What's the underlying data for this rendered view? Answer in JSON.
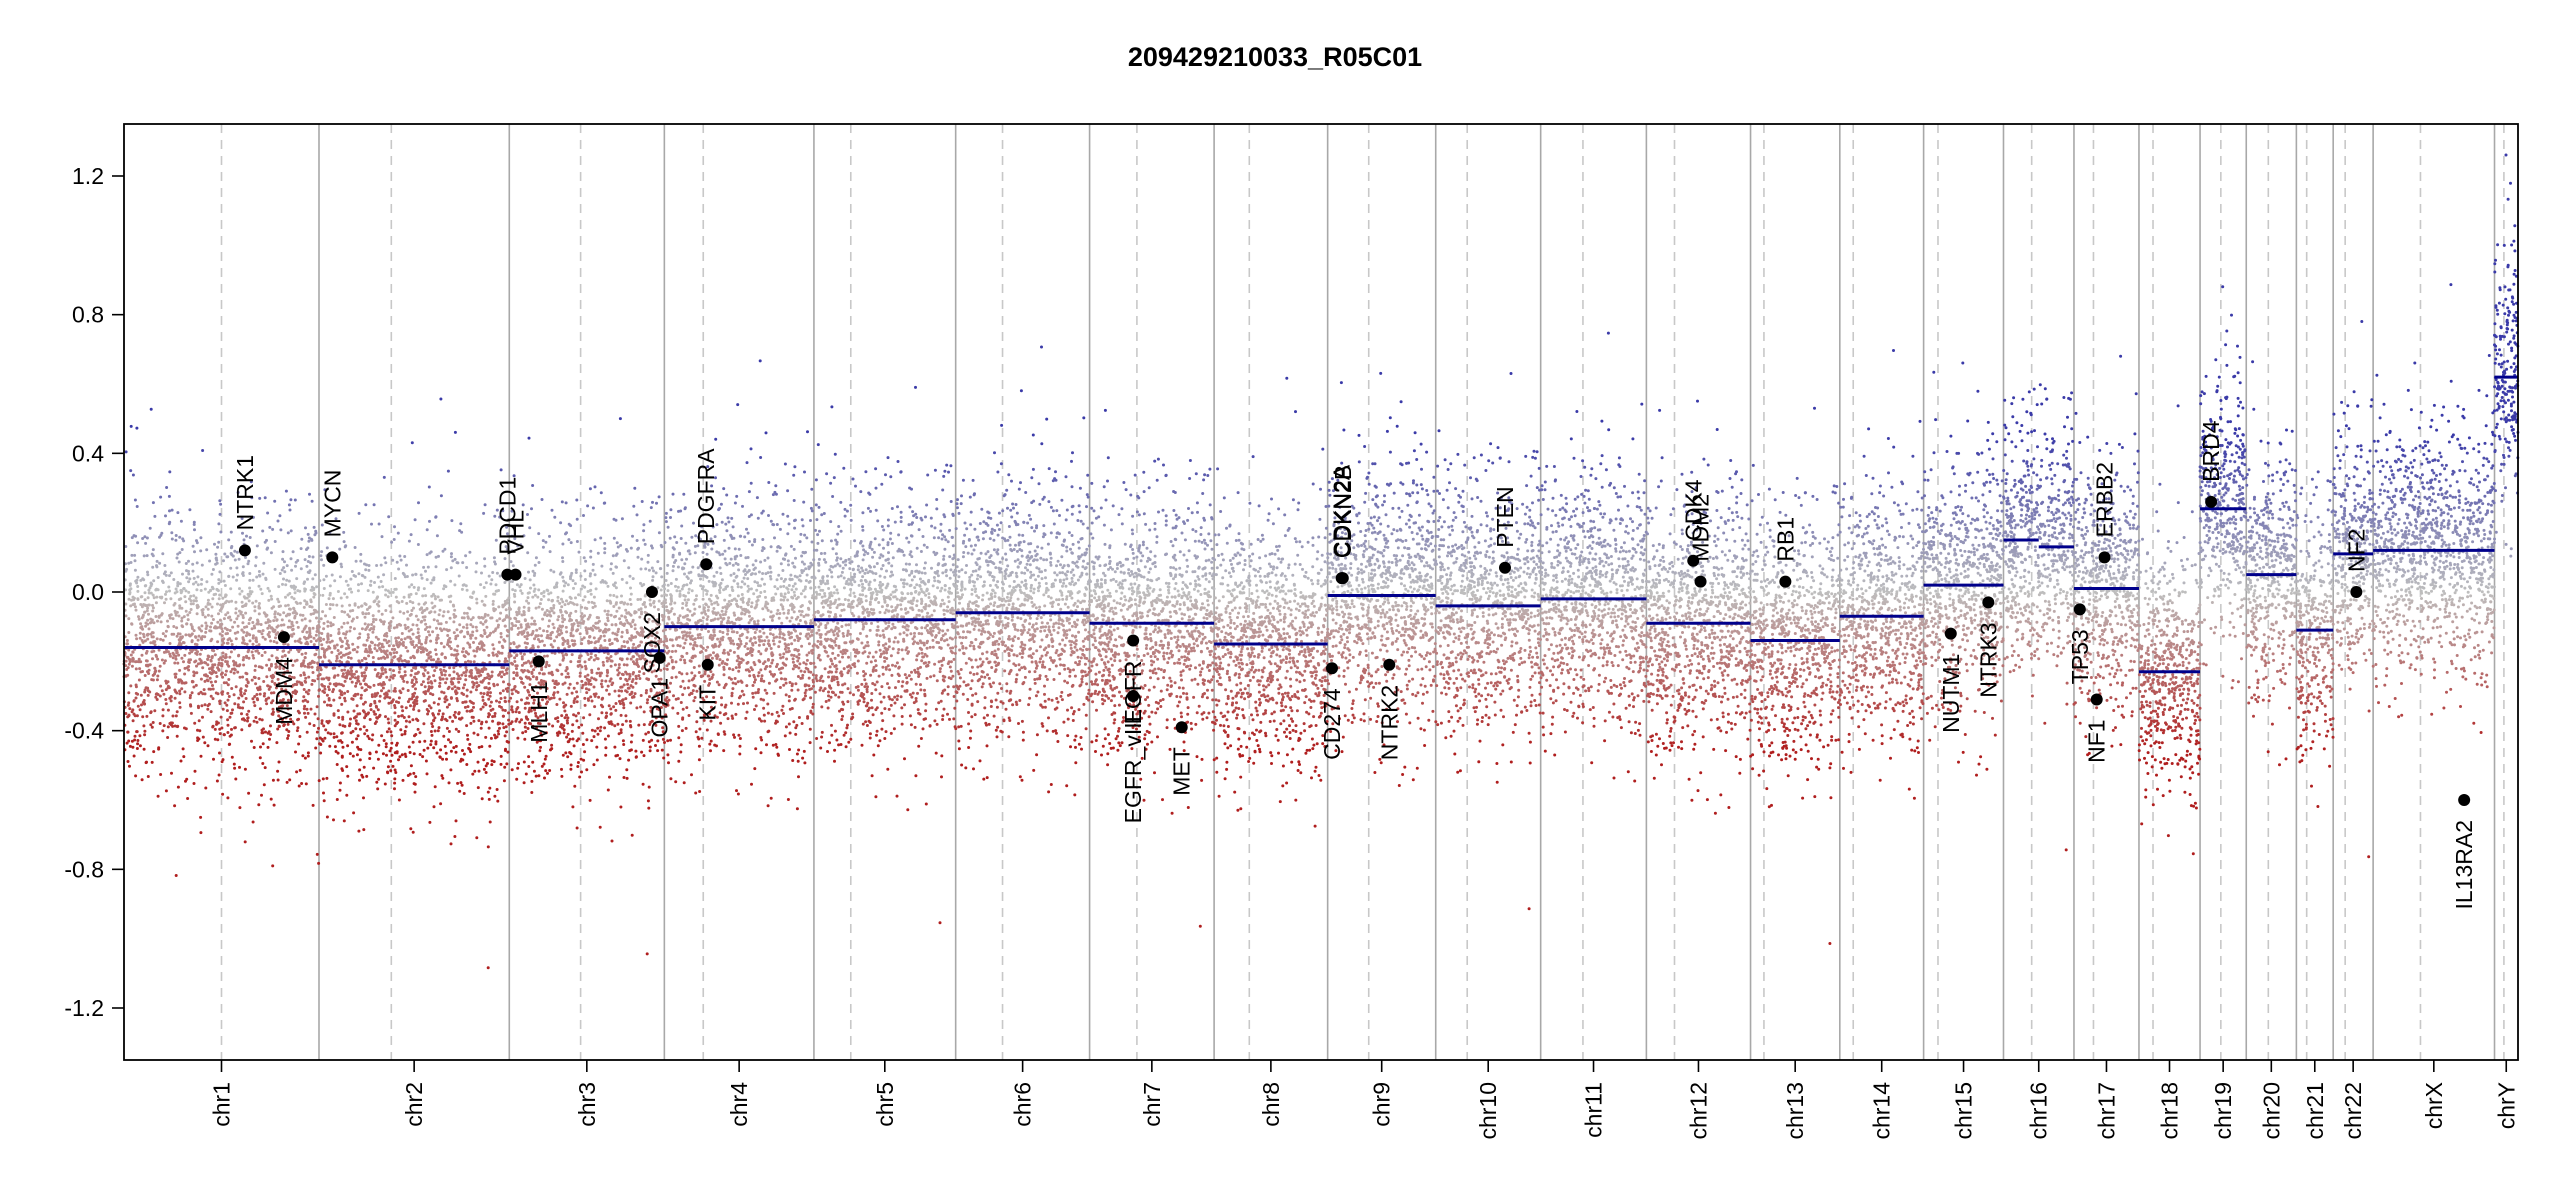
{
  "chart_data": {
    "type": "scatter",
    "title": "209429210033_R05C01",
    "xlabel": "",
    "ylabel": "",
    "ylim": [
      -1.35,
      1.35
    ],
    "yticks": [
      1.2,
      0.8,
      0.4,
      0.0,
      -0.4,
      -0.8,
      -1.2
    ],
    "ytick_labels": [
      "1.2",
      "0.8",
      "0.4",
      "0.0",
      "-0.4",
      "-0.8",
      "-1.2"
    ],
    "grid": false,
    "chromosomes": [
      {
        "name": "chr1",
        "size": 249,
        "centromere": 0.5,
        "segments": [
          {
            "from": 0,
            "to": 1,
            "value": -0.16
          }
        ]
      },
      {
        "name": "chr2",
        "size": 243,
        "centromere": 0.38,
        "segments": [
          {
            "from": 0,
            "to": 1,
            "value": -0.21
          }
        ]
      },
      {
        "name": "chr3",
        "size": 198,
        "centromere": 0.46,
        "segments": [
          {
            "from": 0,
            "to": 1,
            "value": -0.17
          }
        ]
      },
      {
        "name": "chr4",
        "size": 191,
        "centromere": 0.26,
        "segments": [
          {
            "from": 0,
            "to": 1,
            "value": -0.1
          }
        ]
      },
      {
        "name": "chr5",
        "size": 181,
        "centromere": 0.26,
        "segments": [
          {
            "from": 0,
            "to": 1,
            "value": -0.08
          }
        ]
      },
      {
        "name": "chr6",
        "size": 171,
        "centromere": 0.35,
        "segments": [
          {
            "from": 0,
            "to": 1,
            "value": -0.06
          }
        ]
      },
      {
        "name": "chr7",
        "size": 159,
        "centromere": 0.38,
        "segments": [
          {
            "from": 0,
            "to": 1,
            "value": -0.09
          }
        ]
      },
      {
        "name": "chr8",
        "size": 145,
        "centromere": 0.31,
        "segments": [
          {
            "from": 0,
            "to": 1,
            "value": -0.15
          }
        ]
      },
      {
        "name": "chr9",
        "size": 138,
        "centromere": 0.38,
        "segments": [
          {
            "from": 0,
            "to": 1,
            "value": -0.01
          }
        ]
      },
      {
        "name": "chr10",
        "size": 134,
        "centromere": 0.3,
        "segments": [
          {
            "from": 0,
            "to": 1,
            "value": -0.04
          }
        ]
      },
      {
        "name": "chr11",
        "size": 135,
        "centromere": 0.4,
        "segments": [
          {
            "from": 0,
            "to": 1,
            "value": -0.02
          }
        ]
      },
      {
        "name": "chr12",
        "size": 133,
        "centromere": 0.27,
        "segments": [
          {
            "from": 0,
            "to": 1,
            "value": -0.09
          }
        ]
      },
      {
        "name": "chr13",
        "size": 114,
        "centromere": 0.15,
        "segments": [
          {
            "from": 0,
            "to": 1,
            "value": -0.14
          }
        ]
      },
      {
        "name": "chr14",
        "size": 107,
        "centromere": 0.16,
        "segments": [
          {
            "from": 0,
            "to": 1,
            "value": -0.07
          }
        ]
      },
      {
        "name": "chr15",
        "size": 102,
        "centromere": 0.18,
        "segments": [
          {
            "from": 0,
            "to": 1,
            "value": 0.02
          }
        ]
      },
      {
        "name": "chr16",
        "size": 90,
        "centromere": 0.4,
        "segments": [
          {
            "from": 0,
            "to": 0.5,
            "value": 0.15
          },
          {
            "from": 0.5,
            "to": 1,
            "value": 0.13
          }
        ]
      },
      {
        "name": "chr17",
        "size": 83,
        "centromere": 0.3,
        "segments": [
          {
            "from": 0,
            "to": 1,
            "value": 0.01
          }
        ]
      },
      {
        "name": "chr18",
        "size": 78,
        "centromere": 0.23,
        "segments": [
          {
            "from": 0,
            "to": 1,
            "value": -0.23
          }
        ]
      },
      {
        "name": "chr19",
        "size": 59,
        "centromere": 0.45,
        "segments": [
          {
            "from": 0,
            "to": 1,
            "value": 0.24
          }
        ]
      },
      {
        "name": "chr20",
        "size": 64,
        "centromere": 0.44,
        "segments": [
          {
            "from": 0,
            "to": 1,
            "value": 0.05
          }
        ]
      },
      {
        "name": "chr21",
        "size": 47,
        "centromere": 0.28,
        "segments": [
          {
            "from": 0,
            "to": 1,
            "value": -0.11
          }
        ]
      },
      {
        "name": "chr22",
        "size": 51,
        "centromere": 0.3,
        "segments": [
          {
            "from": 0,
            "to": 1,
            "value": 0.11
          }
        ]
      },
      {
        "name": "chrX",
        "size": 155,
        "centromere": 0.39,
        "segments": [
          {
            "from": 0,
            "to": 1,
            "value": 0.12
          }
        ]
      },
      {
        "name": "chrY",
        "size": 30,
        "centromere": 0.4,
        "segments": [
          {
            "from": 0,
            "to": 1,
            "value": 0.62
          }
        ]
      }
    ],
    "genes": [
      {
        "name": "NTRK1",
        "chrom": "chr1",
        "pos": 0.62,
        "value": 0.12,
        "label_side": "above"
      },
      {
        "name": "MDM4",
        "chrom": "chr1",
        "pos": 0.82,
        "value": -0.13,
        "label_side": "below"
      },
      {
        "name": "MYCN",
        "chrom": "chr2",
        "pos": 0.07,
        "value": 0.1,
        "label_side": "above"
      },
      {
        "name": "PDCD1",
        "chrom": "chr2",
        "pos": 0.99,
        "value": 0.05,
        "label_side": "above"
      },
      {
        "name": "VHL",
        "chrom": "chr3",
        "pos": 0.04,
        "value": 0.05,
        "label_side": "above"
      },
      {
        "name": "MLH1",
        "chrom": "chr3",
        "pos": 0.19,
        "value": -0.2,
        "label_side": "below"
      },
      {
        "name": "SOX2",
        "chrom": "chr3",
        "pos": 0.92,
        "value": 0.0,
        "label_side": "below"
      },
      {
        "name": "OPA1",
        "chrom": "chr3",
        "pos": 0.97,
        "value": -0.19,
        "label_side": "below"
      },
      {
        "name": "PDGFRA",
        "chrom": "chr4",
        "pos": 0.28,
        "value": 0.08,
        "label_side": "above"
      },
      {
        "name": "KIT",
        "chrom": "chr4",
        "pos": 0.29,
        "value": -0.21,
        "label_side": "below"
      },
      {
        "name": "EGFR",
        "chrom": "chr7",
        "pos": 0.35,
        "value": -0.14,
        "label_side": "below"
      },
      {
        "name": "EGFR_vIII",
        "chrom": "chr7",
        "pos": 0.35,
        "value": -0.3,
        "label_side": "below"
      },
      {
        "name": "MET",
        "chrom": "chr7",
        "pos": 0.74,
        "value": -0.39,
        "label_side": "below"
      },
      {
        "name": "CD274",
        "chrom": "chr9",
        "pos": 0.04,
        "value": -0.22,
        "label_side": "below"
      },
      {
        "name": "CDKN2A",
        "chrom": "chr9",
        "pos": 0.13,
        "value": 0.04,
        "label_side": "above"
      },
      {
        "name": "CDKN2B",
        "chrom": "chr9",
        "pos": 0.14,
        "value": 0.04,
        "label_side": "above"
      },
      {
        "name": "NTRK2",
        "chrom": "chr9",
        "pos": 0.57,
        "value": -0.21,
        "label_side": "below"
      },
      {
        "name": "PTEN",
        "chrom": "chr10",
        "pos": 0.66,
        "value": 0.07,
        "label_side": "above"
      },
      {
        "name": "CDK4",
        "chrom": "chr12",
        "pos": 0.45,
        "value": 0.09,
        "label_side": "above"
      },
      {
        "name": "MDM2",
        "chrom": "chr12",
        "pos": 0.52,
        "value": 0.03,
        "label_side": "above"
      },
      {
        "name": "RB1",
        "chrom": "chr13",
        "pos": 0.39,
        "value": 0.03,
        "label_side": "above"
      },
      {
        "name": "NUTM1",
        "chrom": "chr15",
        "pos": 0.34,
        "value": -0.12,
        "label_side": "below"
      },
      {
        "name": "NTRK3",
        "chrom": "chr15",
        "pos": 0.81,
        "value": -0.03,
        "label_side": "below"
      },
      {
        "name": "TP53",
        "chrom": "chr17",
        "pos": 0.09,
        "value": -0.05,
        "label_side": "below"
      },
      {
        "name": "NF1",
        "chrom": "chr17",
        "pos": 0.35,
        "value": -0.31,
        "label_side": "below"
      },
      {
        "name": "ERBB2",
        "chrom": "chr17",
        "pos": 0.47,
        "value": 0.1,
        "label_side": "above"
      },
      {
        "name": "BRD4",
        "chrom": "chr19",
        "pos": 0.24,
        "value": 0.26,
        "label_side": "above"
      },
      {
        "name": "NF2",
        "chrom": "chr22",
        "pos": 0.58,
        "value": 0.0,
        "label_side": "above"
      },
      {
        "name": "IL13RA2",
        "chrom": "chrX",
        "pos": 0.75,
        "value": -0.6,
        "label_side": "below"
      }
    ],
    "colors": {
      "gain": "#3a3aa8",
      "neutral": "#b4b4b4",
      "loss": "#b01e1e",
      "segment": "#00008b",
      "gene_point": "#000000",
      "chrom_divider": "#a8a8a8",
      "centromere": "#c8c8c8"
    }
  }
}
